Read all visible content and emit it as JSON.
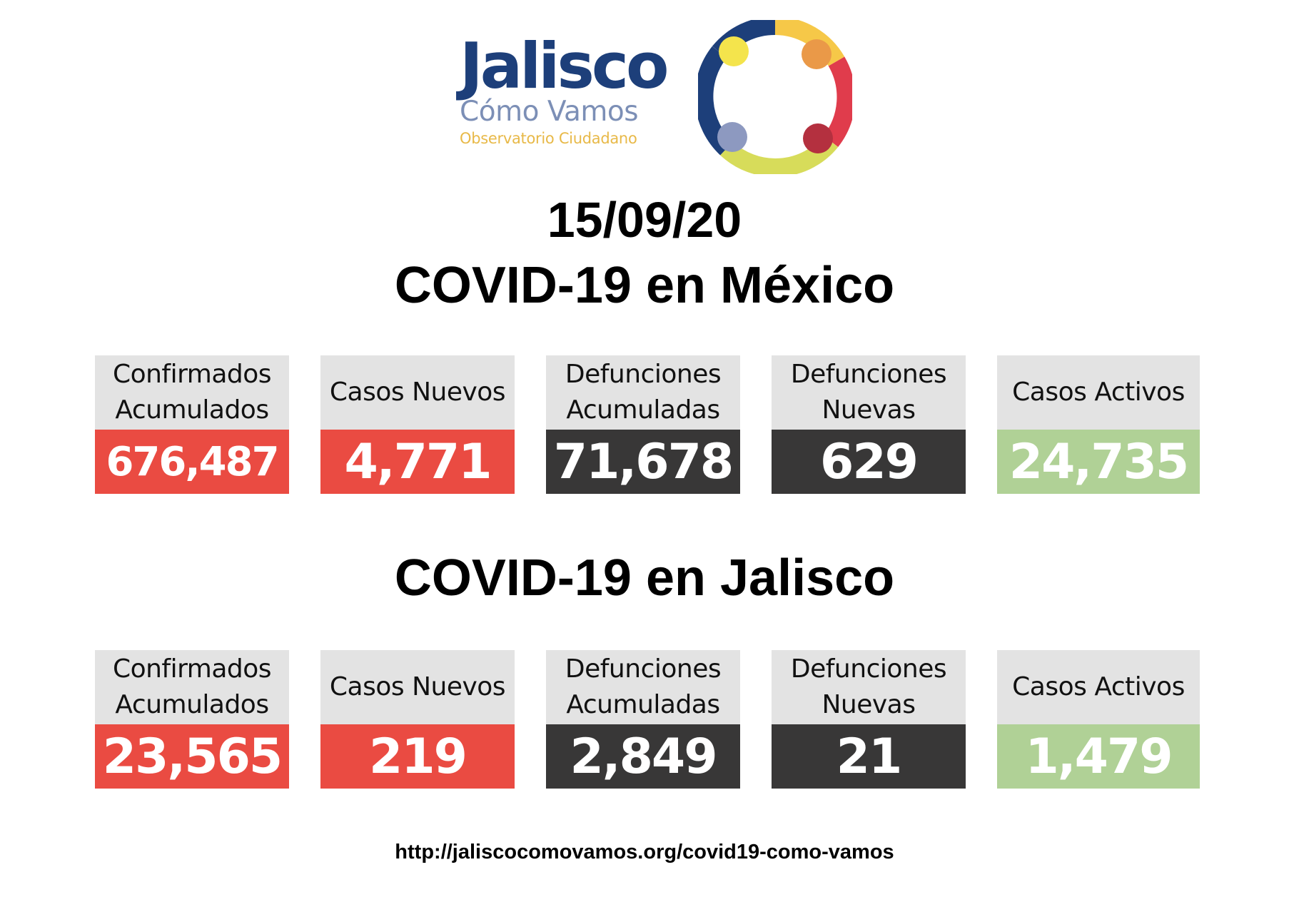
{
  "logo": {
    "word": "Jalisco",
    "subtitle": "Cómo Vamos",
    "tagline": "Observatorio Ciudadano",
    "colors": {
      "blue": "#1d3f7a",
      "yellow": "#f4e44c",
      "light_yellow": "#f6c848",
      "orange": "#ea9948",
      "red": "#e03c4c",
      "dark_red": "#b4303f",
      "lime": "#d7dc5a",
      "gray_blue": "#8d99c0"
    }
  },
  "date": "15/09/20",
  "sections": [
    {
      "title": "COVID-19 en México",
      "cards": [
        {
          "label": "Confirmados\nAcumulados",
          "value": "676,487",
          "color": "#ea4b42"
        },
        {
          "label": "Casos Nuevos",
          "value": "4,771",
          "color": "#ea4b42"
        },
        {
          "label": "Defunciones\nAcumuladas",
          "value": "71,678",
          "color": "#383737"
        },
        {
          "label": "Defunciones\nNuevas",
          "value": "629",
          "color": "#383737"
        },
        {
          "label": "Casos Activos",
          "value": "24,735",
          "color": "#b0d196"
        }
      ]
    },
    {
      "title": "COVID-19 en Jalisco",
      "cards": [
        {
          "label": "Confirmados\nAcumulados",
          "value": "23,565",
          "color": "#ea4b42"
        },
        {
          "label": "Casos Nuevos",
          "value": "219",
          "color": "#ea4b42"
        },
        {
          "label": "Defunciones\nAcumuladas",
          "value": "2,849",
          "color": "#383737"
        },
        {
          "label": "Defunciones\nNuevas",
          "value": "21",
          "color": "#383737"
        },
        {
          "label": "Casos Activos",
          "value": "1,479",
          "color": "#b0d196"
        }
      ]
    }
  ],
  "footer": {
    "url": "http://jaliscocomovamos.org/covid19-como-vamos"
  }
}
